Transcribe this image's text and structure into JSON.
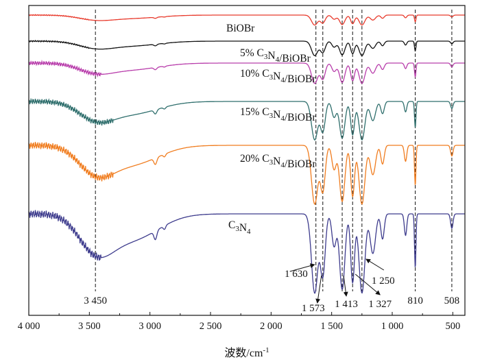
{
  "chart_data": {
    "type": "line",
    "title": "",
    "xlabel": "波数/cm",
    "xlabel_sup": "-1",
    "ylabel": "",
    "xlim": [
      4000,
      400
    ],
    "x_reversed": true,
    "x_ticks": [
      4000,
      3500,
      3000,
      2500,
      2000,
      1500,
      1000,
      500
    ],
    "x_tick_labels": [
      "4 000",
      "3 500",
      "3 000",
      "2 500",
      "2 000",
      "1 500",
      "1 000",
      "500"
    ],
    "grid": false,
    "legend": "none",
    "series_labels": [
      {
        "pre": "",
        "main": "BiOBr"
      },
      {
        "pre": "5% ",
        "main": "C3N4/BiOBr"
      },
      {
        "pre": "10% ",
        "main": "C3N4/BiOBr"
      },
      {
        "pre": "15% ",
        "main": "C3N4/BiOBr"
      },
      {
        "pre": "20% ",
        "main": "C3N4/BiOBr"
      },
      {
        "pre": "",
        "main": "C3N4"
      }
    ],
    "reference_lines": [
      3450,
      1630,
      1573,
      1413,
      1327,
      1250,
      810,
      508
    ],
    "peak_labels": [
      {
        "x": 3450,
        "text": "3 450"
      },
      {
        "x": 1630,
        "text": "1 630"
      },
      {
        "x": 1573,
        "text": "1 573"
      },
      {
        "x": 1413,
        "text": "1 413"
      },
      {
        "x": 1327,
        "text": "1 327"
      },
      {
        "x": 1250,
        "text": "1 250"
      },
      {
        "x": 810,
        "text": "810"
      },
      {
        "x": 508,
        "text": "508"
      }
    ],
    "series": [
      {
        "label_index": 0,
        "color": "#e8392b",
        "base": 0.96,
        "scale": 0.22,
        "noise": 0.01,
        "noise_range": [
          4000,
          3500
        ]
      },
      {
        "label_index": 1,
        "color": "#111111",
        "base": 0.96,
        "scale": 0.32,
        "noise": 0.015,
        "noise_range": [
          4000,
          3500
        ]
      },
      {
        "label_index": 2,
        "color": "#b83dab",
        "base": 0.96,
        "scale": 0.45,
        "noise": 0.05,
        "noise_range": [
          4000,
          3400
        ]
      },
      {
        "label_index": 3,
        "color": "#2e6e6c",
        "base": 0.96,
        "scale": 0.85,
        "noise": 0.07,
        "noise_range": [
          4000,
          3300
        ]
      },
      {
        "label_index": 4,
        "color": "#f07c1e",
        "base": 0.96,
        "scale": 1.3,
        "noise": 0.09,
        "noise_range": [
          4000,
          3300
        ]
      },
      {
        "label_index": 5,
        "color": "#3c3a8c",
        "base": 0.96,
        "scale": 1.75,
        "noise": 0.1,
        "noise_range": [
          4000,
          3400
        ]
      }
    ]
  }
}
